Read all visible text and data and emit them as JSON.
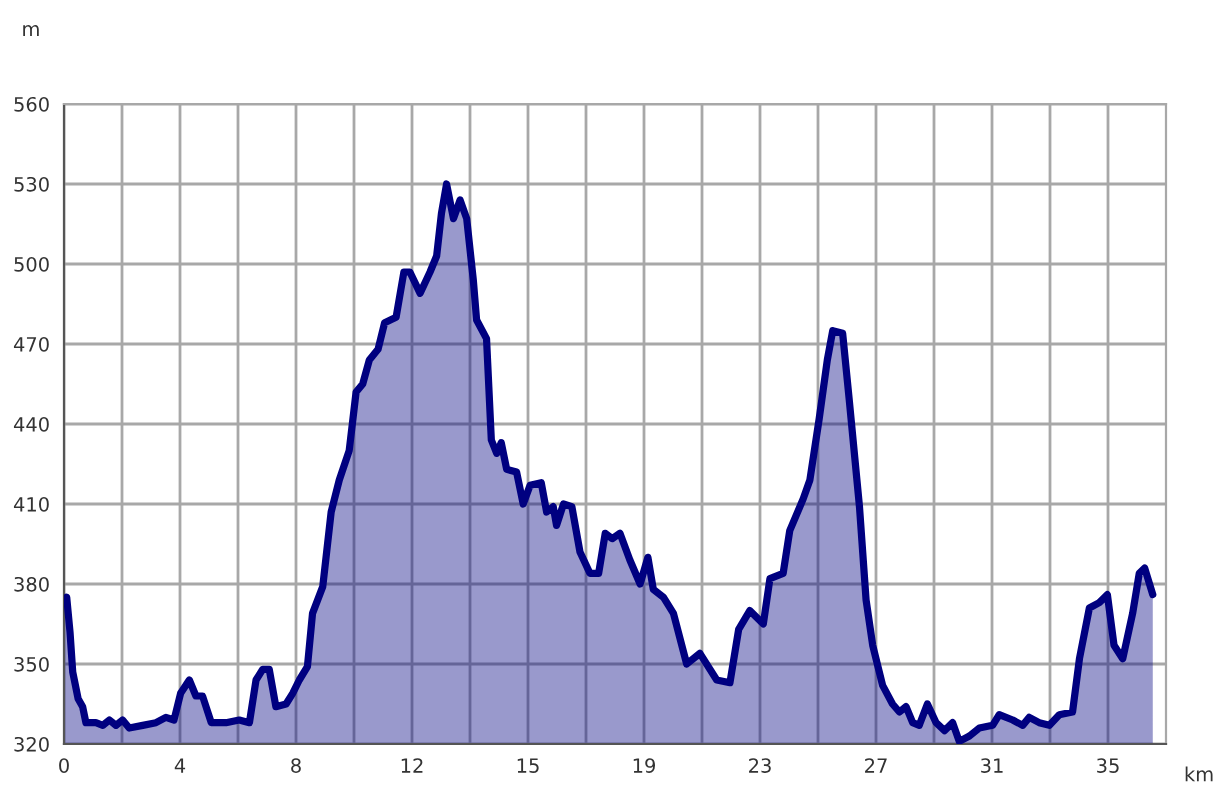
{
  "chart_data": {
    "type": "area",
    "xlabel": "km",
    "ylabel": "m",
    "x": [
      0,
      0.09,
      0.2,
      0.29,
      0.47,
      0.62,
      0.73,
      1.06,
      1.29,
      1.51,
      1.73,
      1.95,
      2.17,
      2.62,
      3.06,
      3.39,
      3.66,
      3.88,
      4.17,
      4.39,
      4.61,
      4.9,
      5.39,
      5.83,
      6.17,
      6.39,
      6.61,
      6.83,
      7.05,
      7.39,
      7.61,
      7.83,
      8.1,
      8.27,
      8.61,
      8.89,
      9.16,
      9.49,
      9.72,
      9.94,
      10.16,
      10.45,
      10.67,
      11.05,
      11.31,
      11.51,
      11.85,
      12.18,
      12.4,
      12.56,
      12.73,
      12.96,
      13.18,
      13.4,
      13.62,
      13.73,
      14.06,
      14.22,
      14.4,
      14.55,
      14.73,
      15.06,
      15.28,
      15.51,
      15.88,
      16.06,
      16.28,
      16.39,
      16.62,
      16.9,
      17.17,
      17.5,
      17.79,
      18.01,
      18.24,
      18.5,
      18.83,
      19.17,
      19.43,
      19.61,
      19.95,
      20.28,
      20.72,
      21.16,
      21.72,
      22.16,
      22.45,
      22.82,
      23.27,
      23.49,
      23.93,
      24.15,
      24.6,
      24.82,
      25.13,
      25.4,
      25.58,
      25.91,
      26.13,
      26.47,
      26.69,
      26.91,
      27.24,
      27.57,
      27.8,
      28.02,
      28.24,
      28.46,
      28.73,
      29.02,
      29.3,
      29.57,
      29.79,
      30.13,
      30.46,
      30.9,
      31.12,
      31.57,
      31.9,
      32.12,
      32.45,
      32.79,
      33.12,
      33.56,
      33.79,
      34.12,
      34.45,
      34.72,
      34.94,
      35.23,
      35.56,
      35.78,
      35.96,
      36.23
    ],
    "series": [
      {
        "color": "#000080",
        "values": [
          373,
          375,
          362,
          347,
          337,
          334,
          328,
          328,
          327,
          329,
          327,
          329,
          326,
          327,
          328,
          330,
          329,
          339,
          344,
          338,
          338,
          328,
          328,
          329,
          328,
          344,
          348,
          348,
          334,
          335,
          339,
          344,
          349,
          369,
          379,
          407,
          419,
          430,
          452,
          455,
          464,
          468,
          478,
          480,
          497,
          497,
          489,
          497,
          503,
          519,
          530,
          517,
          524,
          517,
          494,
          479,
          472,
          434,
          429,
          433,
          423,
          422,
          410,
          417,
          418,
          407,
          409,
          402,
          410,
          409,
          392,
          384,
          384,
          399,
          397,
          399,
          389,
          380,
          390,
          378,
          375,
          369,
          350,
          354,
          344,
          343,
          363,
          370,
          365,
          382,
          384,
          400,
          412,
          419,
          442,
          464,
          475,
          474,
          449,
          409,
          374,
          357,
          342,
          335,
          332,
          334,
          328,
          327,
          335,
          328,
          325,
          328,
          321,
          323,
          326,
          327,
          331,
          329,
          327,
          330,
          328,
          327,
          331,
          332,
          352,
          371,
          373,
          376,
          357,
          352,
          369,
          384,
          386,
          376
        ]
      }
    ],
    "xlim": [
      0,
      36.67
    ],
    "ylim": [
      320,
      560
    ],
    "xticks": [
      0,
      {
        "value": 1.93,
        "label": null
      },
      {
        "value": 3.86,
        "label": "4"
      },
      {
        "value": 5.79,
        "label": null
      },
      {
        "value": 7.72,
        "label": "8"
      },
      {
        "value": 9.65,
        "label": null
      },
      {
        "value": 11.58,
        "label": "12"
      },
      {
        "value": 13.51,
        "label": null
      },
      {
        "value": 15.44,
        "label": "15"
      },
      {
        "value": 17.37,
        "label": null
      },
      {
        "value": 19.3,
        "label": "19"
      },
      {
        "value": 21.23,
        "label": null
      },
      {
        "value": 23.16,
        "label": "23"
      },
      {
        "value": 25.09,
        "label": null
      },
      {
        "value": 27.02,
        "label": "27"
      },
      {
        "value": 28.95,
        "label": null
      },
      {
        "value": 30.88,
        "label": "31"
      },
      {
        "value": 32.81,
        "label": null
      },
      {
        "value": 34.74,
        "label": "35"
      }
    ],
    "yticks": [
      320,
      350,
      380,
      410,
      440,
      470,
      500,
      530,
      560
    ],
    "grid": true,
    "legend": false,
    "marker": "none",
    "line_style": "solid"
  }
}
